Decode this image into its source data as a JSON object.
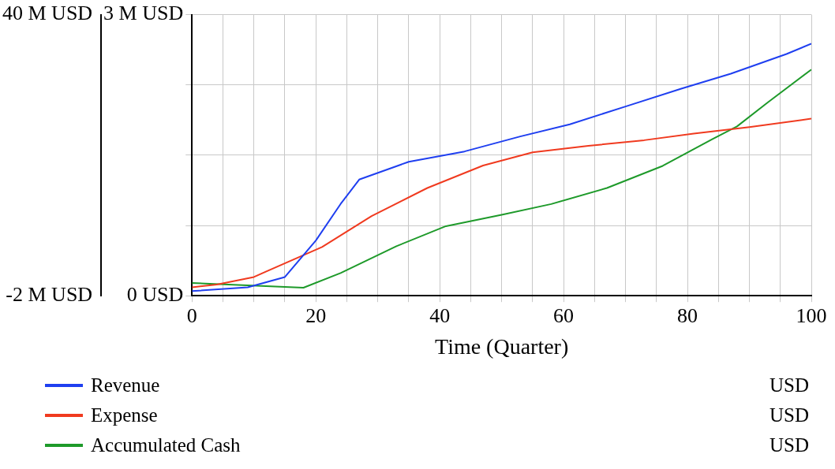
{
  "chart_data": {
    "type": "line",
    "xlabel": "Time (Quarter)",
    "xlim": [
      0,
      100
    ],
    "xticks": [
      0,
      {
        "value": 5,
        "label": null
      },
      {
        "value": 10,
        "label": null
      },
      {
        "value": 15,
        "label": null
      },
      20,
      {
        "value": 25,
        "label": null
      },
      {
        "value": 30,
        "label": null
      },
      {
        "value": 35,
        "label": null
      },
      40,
      {
        "value": 45,
        "label": null
      },
      {
        "value": 50,
        "label": null
      },
      {
        "value": 55,
        "label": null
      },
      60,
      {
        "value": 65,
        "label": null
      },
      {
        "value": 70,
        "label": null
      },
      {
        "value": 75,
        "label": null
      },
      80,
      {
        "value": 85,
        "label": null
      },
      {
        "value": 90,
        "label": null
      },
      {
        "value": 95,
        "label": null
      },
      100
    ],
    "ylim": [
      0,
      3000000
    ],
    "yticks": [
      {
        "value": 0,
        "label": "0 USD"
      },
      {
        "value": 750000,
        "label": null
      },
      {
        "value": 1500000,
        "label": null
      },
      {
        "value": 2250000,
        "label": null
      },
      {
        "value": 3000000,
        "label": "3 M USD"
      }
    ],
    "y2lim": [
      -2000000,
      40000000
    ],
    "y2ticks": [
      {
        "value": -2000000,
        "label": "-2 M USD"
      },
      {
        "value": 40000000,
        "label": "40 M USD"
      }
    ],
    "grid": true,
    "legend": "bottom",
    "annotations": [
      "USD",
      "USD",
      "USD"
    ],
    "series": [
      {
        "name": "Revenue",
        "color": "#1f3ff0",
        "x": [
          0,
          9,
          15,
          20,
          24,
          27,
          35,
          44,
          53,
          61,
          70,
          79,
          87,
          96,
          100
        ],
        "values": [
          50000,
          90000,
          200000,
          590000,
          980000,
          1240000,
          1430000,
          1540000,
          1700000,
          1830000,
          2020000,
          2210000,
          2370000,
          2580000,
          2690000
        ]
      },
      {
        "name": "Expense",
        "color": "#f03a1f",
        "x": [
          0,
          4,
          10,
          12,
          21,
          29,
          38,
          47,
          55,
          64,
          73,
          81,
          90,
          100
        ],
        "values": [
          90000,
          120000,
          200000,
          260000,
          520000,
          850000,
          1150000,
          1390000,
          1530000,
          1600000,
          1660000,
          1730000,
          1800000,
          1890000
        ]
      },
      {
        "name": "Accumulated Cash",
        "color": "#1e9a2a",
        "axis": "y2",
        "x": [
          0,
          18,
          24,
          33,
          41,
          50,
          58,
          67,
          76,
          84,
          88,
          93,
          100
        ],
        "values": [
          -100000,
          -800000,
          1400000,
          5400000,
          8400000,
          10100000,
          11700000,
          14100000,
          17400000,
          21400000,
          23300000,
          26900000,
          31800000
        ]
      }
    ]
  }
}
